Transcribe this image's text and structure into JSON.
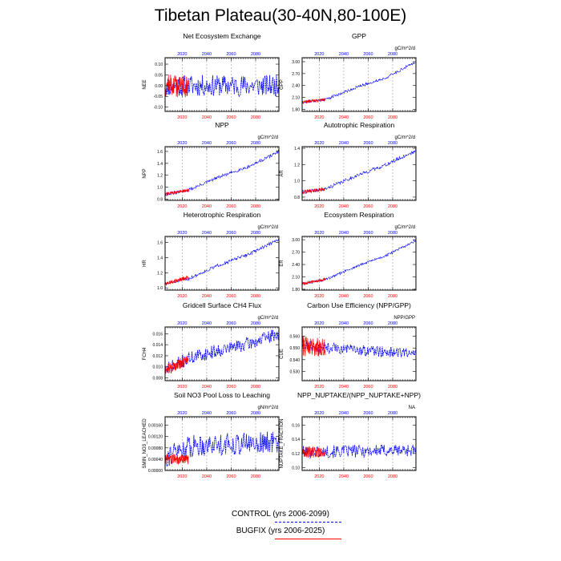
{
  "title": "Tibetan Plateau(30-40N,80-100E)",
  "colors": {
    "control": "#0000ff",
    "bugfix": "#ff0000",
    "grid": "#999999"
  },
  "legend": {
    "control_label": "CONTROL (yrs 2006-2099)",
    "bugfix_label": "BUGFIX (yrs 2006-2025)"
  },
  "chart_data": [
    {
      "type": "line",
      "title": "Net Ecosystem Exchange",
      "units": "",
      "ylabel": "NEE",
      "xlim": [
        2006,
        2099
      ],
      "ylim": [
        -0.12,
        0.13
      ],
      "yticks": [
        -0.1,
        -0.05,
        0.0,
        0.05,
        0.1
      ],
      "ytick_labels": [
        "-0.10",
        "-0.05",
        "0.00",
        "0.05",
        "0.10"
      ],
      "xticks": [
        2020,
        2040,
        2060,
        2080
      ],
      "xtick_labels": [
        "2020",
        "2040",
        "2060",
        "2080"
      ],
      "series": [
        {
          "name": "CONTROL (yrs 2006-2099)",
          "trend": [
            [
              2006,
              0.0
            ],
            [
              2099,
              0.0
            ]
          ],
          "noise": 0.05,
          "seed": 11
        },
        {
          "name": "BUGFIX (yrs 2006-2025)",
          "trend": [
            [
              2006,
              0.0
            ],
            [
              2025,
              0.0
            ]
          ],
          "noise": 0.055,
          "seed": 12
        }
      ]
    },
    {
      "type": "line",
      "title": "GPP",
      "units": "gC/m^2/d",
      "ylabel": "GPP",
      "xlim": [
        2006,
        2099
      ],
      "ylim": [
        1.75,
        3.1
      ],
      "yticks": [
        1.8,
        2.1,
        2.4,
        2.7,
        3.0
      ],
      "ytick_labels": [
        "1.80",
        "2.10",
        "2.40",
        "2.70",
        "3.00"
      ],
      "xticks": [
        2020,
        2040,
        2060,
        2080
      ],
      "xtick_labels": [
        "2020",
        "2040",
        "2060",
        "2080"
      ],
      "series": [
        {
          "name": "CONTROL (yrs 2006-2099)",
          "trend": [
            [
              2006,
              1.98
            ],
            [
              2025,
              2.05
            ],
            [
              2050,
              2.35
            ],
            [
              2075,
              2.6
            ],
            [
              2099,
              3.0
            ]
          ],
          "noise": 0.035,
          "seed": 21
        },
        {
          "name": "BUGFIX (yrs 2006-2025)",
          "trend": [
            [
              2006,
              1.98
            ],
            [
              2025,
              2.05
            ]
          ],
          "noise": 0.04,
          "seed": 22
        }
      ]
    },
    {
      "type": "line",
      "title": "NPP",
      "units": "gC/m^2/d",
      "ylabel": "NPP",
      "xlim": [
        2006,
        2099
      ],
      "ylim": [
        0.78,
        1.68
      ],
      "yticks": [
        0.8,
        1.0,
        1.2,
        1.4,
        1.6
      ],
      "ytick_labels": [
        "0.8",
        "1.0",
        "1.2",
        "1.4",
        "1.6"
      ],
      "xticks": [
        2020,
        2040,
        2060,
        2080
      ],
      "xtick_labels": [
        "2020",
        "2040",
        "2060",
        "2080"
      ],
      "series": [
        {
          "name": "CONTROL (yrs 2006-2099)",
          "trend": [
            [
              2006,
              0.88
            ],
            [
              2025,
              0.95
            ],
            [
              2050,
              1.17
            ],
            [
              2075,
              1.35
            ],
            [
              2099,
              1.6
            ]
          ],
          "noise": 0.025,
          "seed": 31
        },
        {
          "name": "BUGFIX (yrs 2006-2025)",
          "trend": [
            [
              2006,
              0.88
            ],
            [
              2025,
              0.95
            ]
          ],
          "noise": 0.03,
          "seed": 32
        }
      ]
    },
    {
      "type": "line",
      "title": "Autotrophic Respiration",
      "units": "gC/m^2/d",
      "ylabel": "AR",
      "xlim": [
        2006,
        2099
      ],
      "ylim": [
        0.76,
        1.42
      ],
      "yticks": [
        0.8,
        1.0,
        1.2,
        1.4
      ],
      "ytick_labels": [
        "0.8",
        "1.0",
        "1.2",
        "1.4"
      ],
      "xticks": [
        2020,
        2040,
        2060,
        2080
      ],
      "xtick_labels": [
        "2020",
        "2040",
        "2060",
        "2080"
      ],
      "series": [
        {
          "name": "CONTROL (yrs 2006-2099)",
          "trend": [
            [
              2006,
              0.86
            ],
            [
              2025,
              0.9
            ],
            [
              2050,
              1.06
            ],
            [
              2075,
              1.2
            ],
            [
              2099,
              1.37
            ]
          ],
          "noise": 0.02,
          "seed": 41
        },
        {
          "name": "BUGFIX (yrs 2006-2025)",
          "trend": [
            [
              2006,
              0.86
            ],
            [
              2025,
              0.9
            ]
          ],
          "noise": 0.022,
          "seed": 42
        }
      ]
    },
    {
      "type": "line",
      "title": "Heterotrophic Respiration",
      "units": "gC/m^2/d",
      "ylabel": "HR",
      "xlim": [
        2006,
        2099
      ],
      "ylim": [
        0.97,
        1.68
      ],
      "yticks": [
        1.0,
        1.2,
        1.4,
        1.6
      ],
      "ytick_labels": [
        "1.0",
        "1.2",
        "1.4",
        "1.6"
      ],
      "xticks": [
        2020,
        2040,
        2060,
        2080
      ],
      "xtick_labels": [
        "2020",
        "2040",
        "2060",
        "2080"
      ],
      "series": [
        {
          "name": "CONTROL (yrs 2006-2099)",
          "trend": [
            [
              2006,
              1.05
            ],
            [
              2025,
              1.12
            ],
            [
              2050,
              1.3
            ],
            [
              2075,
              1.45
            ],
            [
              2099,
              1.64
            ]
          ],
          "noise": 0.02,
          "seed": 51
        },
        {
          "name": "BUGFIX (yrs 2006-2025)",
          "trend": [
            [
              2006,
              1.05
            ],
            [
              2025,
              1.14
            ]
          ],
          "noise": 0.025,
          "seed": 52
        }
      ]
    },
    {
      "type": "line",
      "title": "Ecosystem Respiration",
      "units": "gC/m^2/d",
      "ylabel": "ER",
      "xlim": [
        2006,
        2099
      ],
      "ylim": [
        1.78,
        3.08
      ],
      "yticks": [
        1.8,
        2.1,
        2.4,
        2.7,
        3.0
      ],
      "ytick_labels": [
        "1.80",
        "2.10",
        "2.40",
        "2.70",
        "3.00"
      ],
      "xticks": [
        2020,
        2040,
        2060,
        2080
      ],
      "xtick_labels": [
        "2020",
        "2040",
        "2060",
        "2080"
      ],
      "series": [
        {
          "name": "CONTROL (yrs 2006-2099)",
          "trend": [
            [
              2006,
              1.93
            ],
            [
              2025,
              2.03
            ],
            [
              2050,
              2.35
            ],
            [
              2075,
              2.62
            ],
            [
              2099,
              2.98
            ]
          ],
          "noise": 0.03,
          "seed": 61
        },
        {
          "name": "BUGFIX (yrs 2006-2025)",
          "trend": [
            [
              2006,
              1.93
            ],
            [
              2025,
              2.05
            ]
          ],
          "noise": 0.035,
          "seed": 62
        }
      ]
    },
    {
      "type": "line",
      "title": "Gridcell Surface CH4 Flux",
      "units": "gC/m^2/d",
      "ylabel": "FCH4",
      "xlim": [
        2006,
        2099
      ],
      "ylim": [
        0.0075,
        0.0172
      ],
      "yticks": [
        0.008,
        0.01,
        0.012,
        0.014,
        0.016
      ],
      "ytick_labels": [
        "0.008",
        "0.010",
        "0.012",
        "0.014",
        "0.016"
      ],
      "xticks": [
        2020,
        2040,
        2060,
        2080
      ],
      "xtick_labels": [
        "2020",
        "2040",
        "2060",
        "2080"
      ],
      "series": [
        {
          "name": "CONTROL (yrs 2006-2099)",
          "trend": [
            [
              2006,
              0.0095
            ],
            [
              2025,
              0.0115
            ],
            [
              2050,
              0.013
            ],
            [
              2075,
              0.0142
            ],
            [
              2099,
              0.016
            ]
          ],
          "noise": 0.0012,
          "seed": 71
        },
        {
          "name": "BUGFIX (yrs 2006-2025)",
          "trend": [
            [
              2006,
              0.0095
            ],
            [
              2025,
              0.0112
            ]
          ],
          "noise": 0.001,
          "seed": 72
        }
      ]
    },
    {
      "type": "line",
      "title": "Carbon Use Efficiency (NPP/GPP)",
      "units": "NPP/GPP",
      "ylabel": "CUE",
      "xlim": [
        2006,
        2099
      ],
      "ylim": [
        0.522,
        0.568
      ],
      "yticks": [
        0.53,
        0.54,
        0.55,
        0.56
      ],
      "ytick_labels": [
        "0.530",
        "0.540",
        "0.550",
        "0.560"
      ],
      "xticks": [
        2020,
        2040,
        2060,
        2080
      ],
      "xtick_labels": [
        "2020",
        "2040",
        "2060",
        "2080"
      ],
      "series": [
        {
          "name": "CONTROL (yrs 2006-2099)",
          "trend": [
            [
              2006,
              0.552
            ],
            [
              2040,
              0.549
            ],
            [
              2099,
              0.545
            ]
          ],
          "noise": 0.0045,
          "seed": 81
        },
        {
          "name": "BUGFIX (yrs 2006-2025)",
          "trend": [
            [
              2006,
              0.552
            ],
            [
              2025,
              0.551
            ]
          ],
          "noise": 0.009,
          "seed": 82
        }
      ]
    },
    {
      "type": "line",
      "title": "Soil NO3 Pool Loss to Leaching",
      "units": "gN/m^2/d",
      "ylabel": "SMIN_NO3_LEACHED",
      "xlim": [
        2006,
        2099
      ],
      "ylim": [
        0.0,
        0.0019
      ],
      "yticks": [
        0.0,
        0.0004,
        0.0008,
        0.0012,
        0.0016
      ],
      "ytick_labels": [
        "0.00000",
        "0.00040",
        "0.00080",
        "0.00120",
        "0.00160"
      ],
      "xticks": [
        2020,
        2040,
        2060,
        2080
      ],
      "xtick_labels": [
        "2020",
        "2040",
        "2060",
        "2080"
      ],
      "series": [
        {
          "name": "CONTROL (yrs 2006-2099)",
          "trend": [
            [
              2006,
              0.0005
            ],
            [
              2030,
              0.0009
            ],
            [
              2099,
              0.001
            ]
          ],
          "noise": 0.0004,
          "seed": 91
        },
        {
          "name": "BUGFIX (yrs 2006-2025)",
          "trend": [
            [
              2006,
              0.0004
            ],
            [
              2025,
              0.0004
            ]
          ],
          "noise": 0.00018,
          "seed": 92
        }
      ]
    },
    {
      "type": "line",
      "title": "NPP_NUPTAKE/(NPP_NUPTAKE+NPP)",
      "units": "NA",
      "ylabel": "NUPTAKE_FRACTION",
      "xlim": [
        2006,
        2099
      ],
      "ylim": [
        0.096,
        0.172
      ],
      "yticks": [
        0.1,
        0.12,
        0.14,
        0.16
      ],
      "ytick_labels": [
        "0.10",
        "0.12",
        "0.14",
        "0.16"
      ],
      "xticks": [
        2020,
        2040,
        2060,
        2080
      ],
      "xtick_labels": [
        "2020",
        "2040",
        "2060",
        "2080"
      ],
      "series": [
        {
          "name": "CONTROL (yrs 2006-2099)",
          "trend": [
            [
              2006,
              0.122
            ],
            [
              2099,
              0.125
            ]
          ],
          "noise": 0.009,
          "seed": 101
        },
        {
          "name": "BUGFIX (yrs 2006-2025)",
          "trend": [
            [
              2006,
              0.122
            ],
            [
              2025,
              0.122
            ]
          ],
          "noise": 0.008,
          "seed": 102
        }
      ]
    }
  ]
}
